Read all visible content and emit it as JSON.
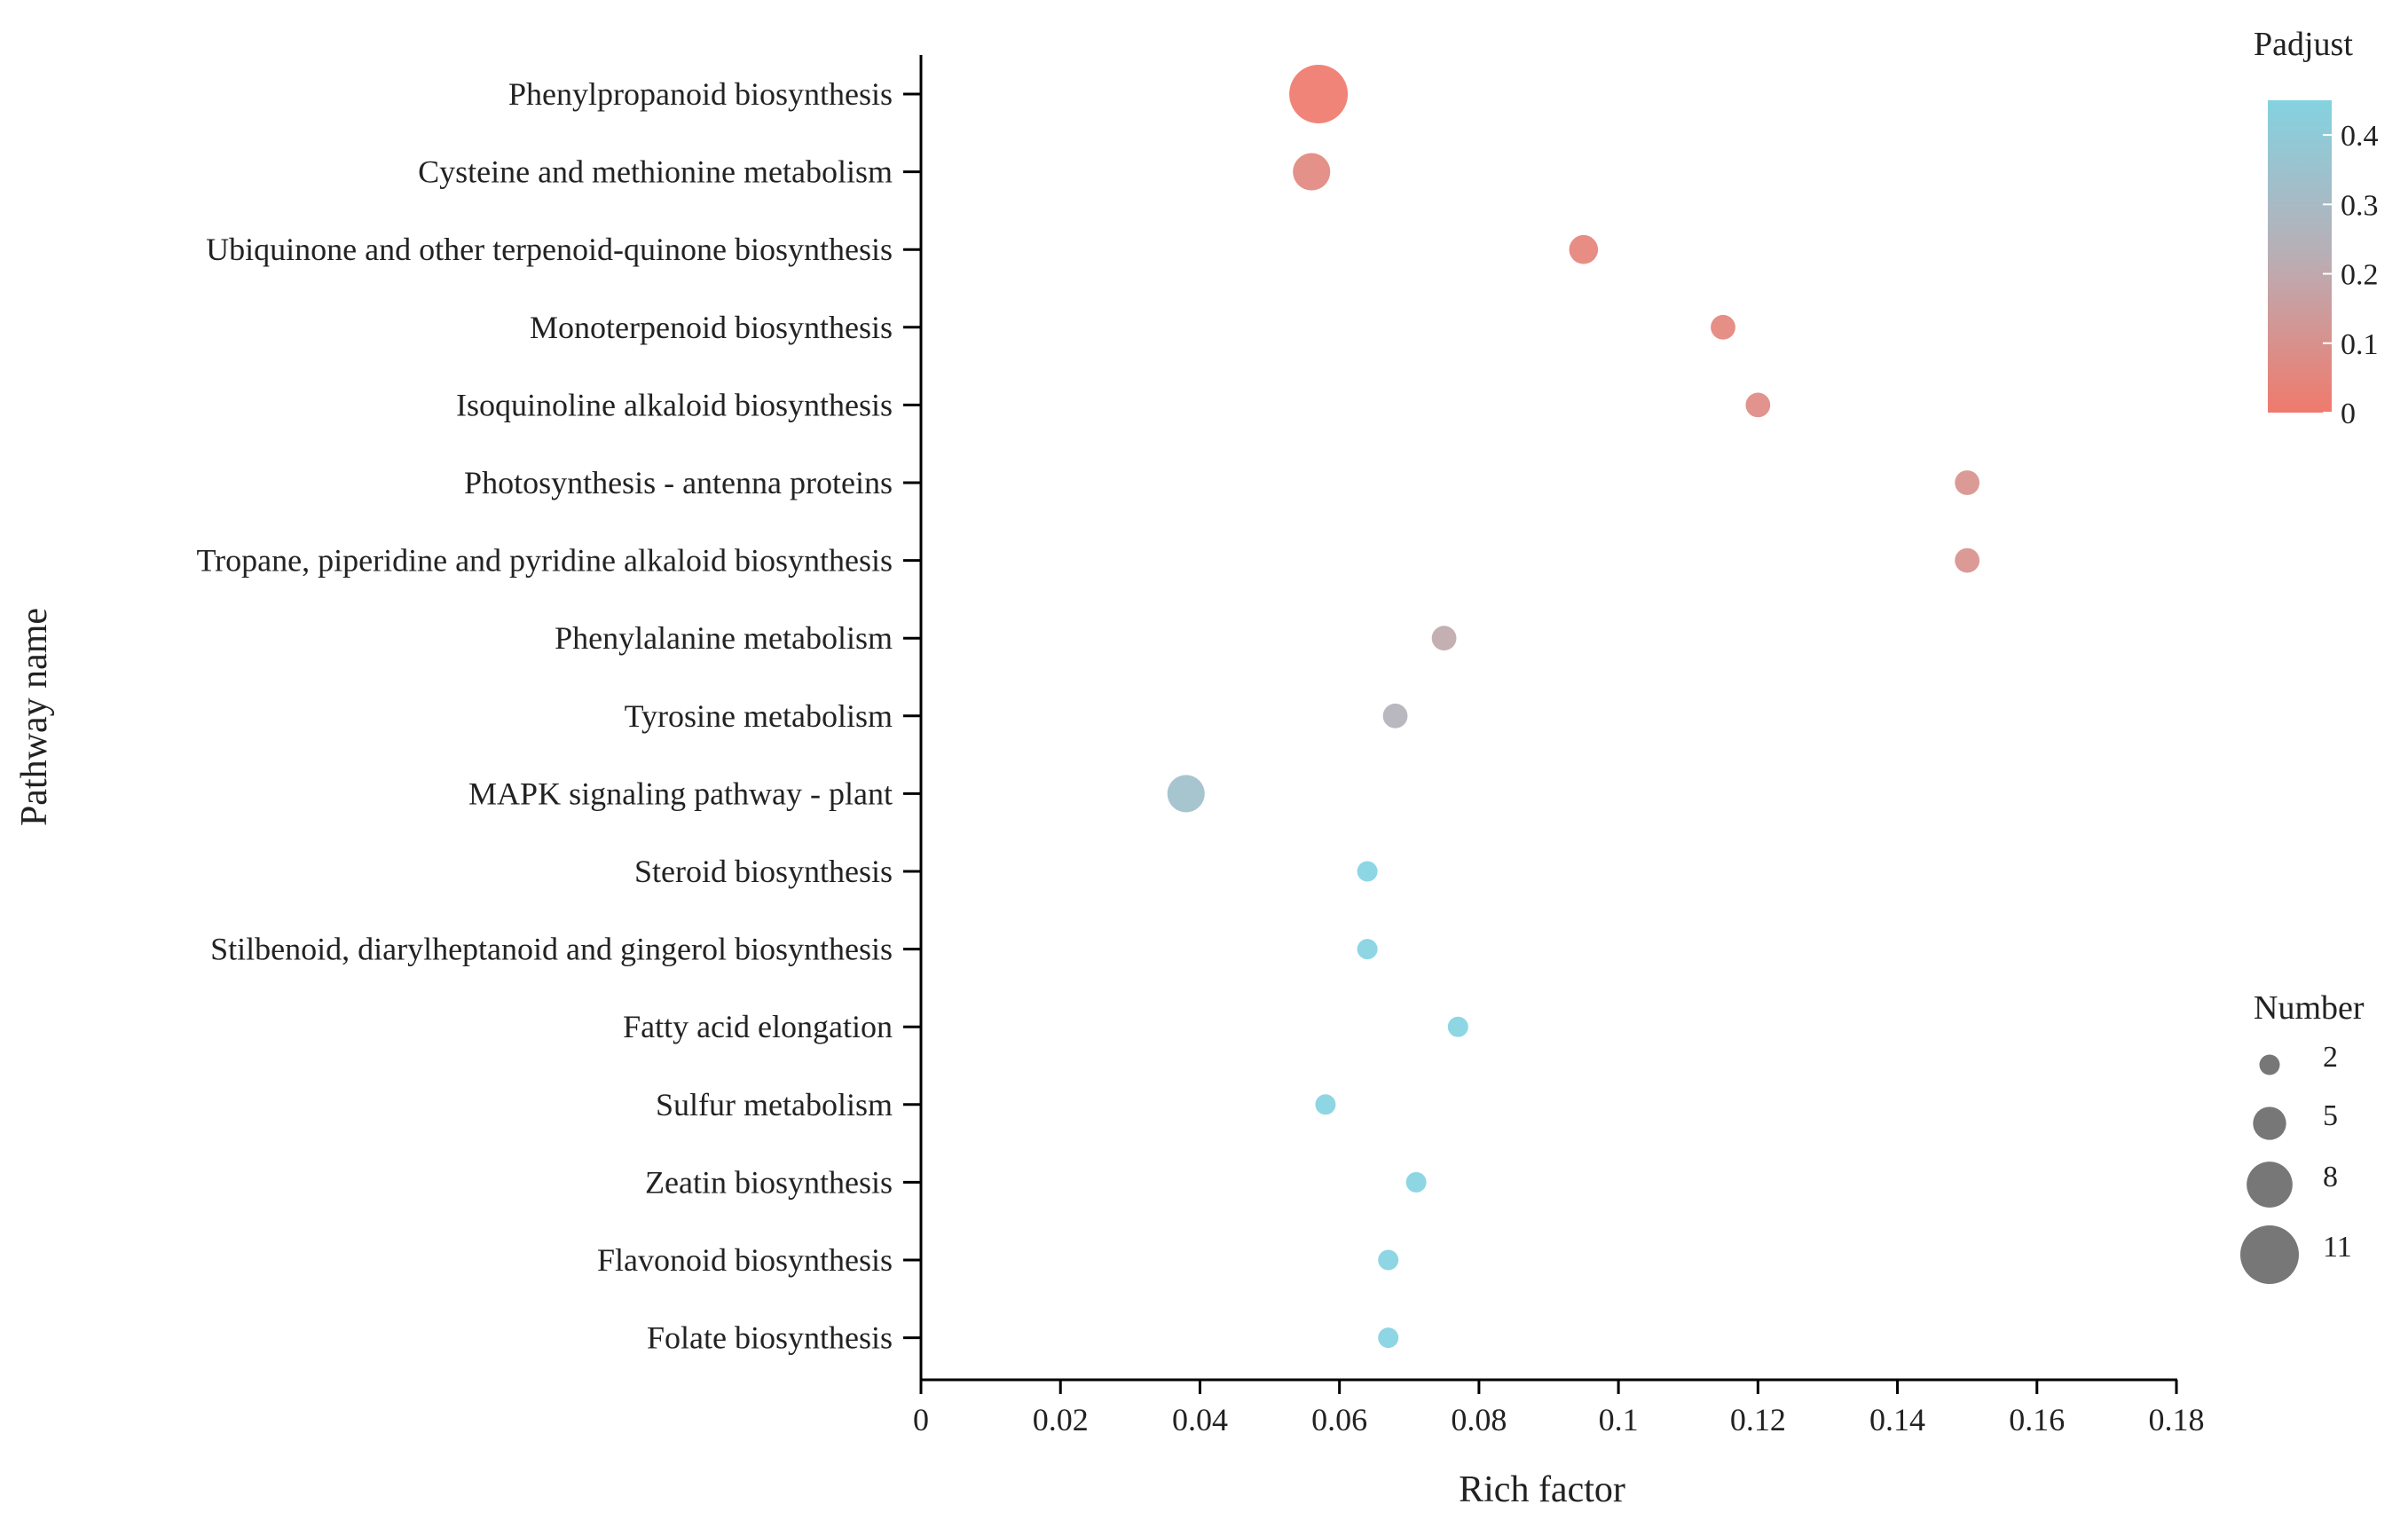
{
  "chart_data": {
    "type": "scatter",
    "subtype": "bubble",
    "xlabel": "Rich factor",
    "ylabel": "Pathway name",
    "xlim": [
      0,
      0.18
    ],
    "xticks": [
      "0",
      "0.02",
      "0.04",
      "0.06",
      "0.08",
      "0.1",
      "0.12",
      "0.14",
      "0.16",
      "0.18"
    ],
    "categories": [
      "Phenylpropanoid biosynthesis",
      "Cysteine and methionine metabolism",
      "Ubiquinone and other terpenoid-quinone biosynthesis",
      "Monoterpenoid biosynthesis",
      "Isoquinoline alkaloid biosynthesis",
      "Photosynthesis - antenna proteins",
      "Tropane, piperidine and pyridine alkaloid biosynthesis",
      "Phenylalanine metabolism",
      "Tyrosine metabolism",
      "MAPK signaling pathway - plant",
      "Steroid biosynthesis",
      "Stilbenoid, diarylheptanoid and gingerol biosynthesis",
      "Fatty acid elongation",
      "Sulfur metabolism",
      "Zeatin biosynthesis",
      "Flavonoid biosynthesis",
      "Folate biosynthesis"
    ],
    "rich_factor": [
      0.057,
      0.056,
      0.095,
      0.115,
      0.12,
      0.15,
      0.15,
      0.075,
      0.068,
      0.038,
      0.064,
      0.064,
      0.077,
      0.058,
      0.071,
      0.067,
      0.067
    ],
    "number": [
      11,
      6,
      4,
      3,
      3,
      3,
      3,
      3,
      3,
      6,
      2,
      2,
      2,
      2,
      2,
      2,
      2
    ],
    "padjust": [
      0.0,
      0.06,
      0.04,
      0.05,
      0.07,
      0.1,
      0.1,
      0.2,
      0.25,
      0.34,
      0.45,
      0.45,
      0.45,
      0.45,
      0.45,
      0.45,
      0.45
    ],
    "color_legend": {
      "title": "Padjust",
      "range": [
        0,
        0.45
      ],
      "ticks": [
        "0",
        "0.1",
        "0.2",
        "0.3",
        "0.4"
      ],
      "low_color": "#f07a6c",
      "mid_color": "#b9aeb5",
      "high_color": "#84d2e1"
    },
    "size_legend": {
      "title": "Number",
      "values": [
        "2",
        "5",
        "8",
        "11"
      ]
    },
    "marker_color_fallback": "#777777"
  }
}
